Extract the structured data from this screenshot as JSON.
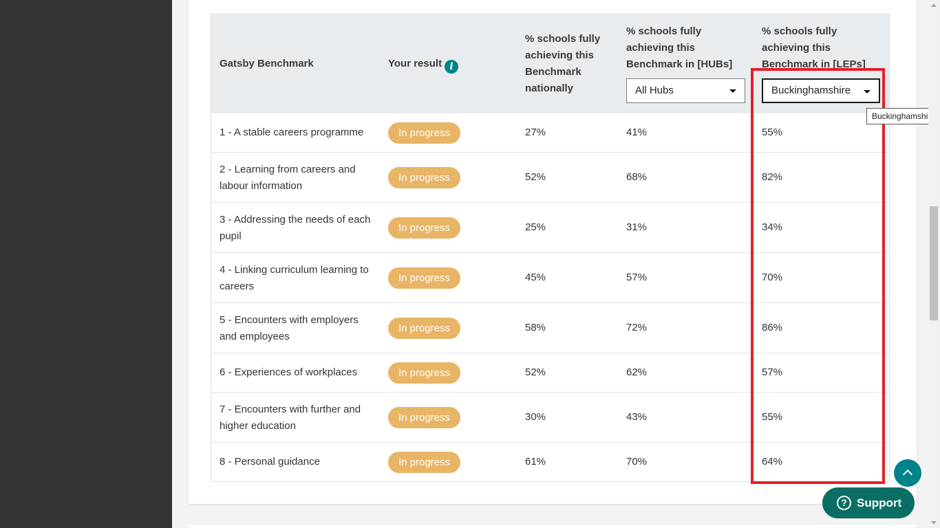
{
  "header": {
    "col_benchmark": "Gatsby Benchmark",
    "col_result": "Your result",
    "col_national": "% schools fully achieving this Benchmark nationally",
    "col_hubs": "% schools fully achieving this Benchmark in [HUBs]",
    "col_leps": "% schools fully achieving this Benchmark in [LEPs]",
    "hubs_select_value": "All Hubs",
    "leps_select_value": "Buckinghamshire"
  },
  "tooltip": "Buckinghamshire",
  "rows": [
    {
      "name": "1 - A stable careers programme",
      "result": "In progress",
      "national": "27%",
      "hubs": "41%",
      "leps": "55%"
    },
    {
      "name": "2 - Learning from careers and labour information",
      "result": "In progress",
      "national": "52%",
      "hubs": "68%",
      "leps": "82%"
    },
    {
      "name": "3 - Addressing the needs of each pupil",
      "result": "In progress",
      "national": "25%",
      "hubs": "31%",
      "leps": "34%"
    },
    {
      "name": "4 - Linking curriculum learning to careers",
      "result": "In progress",
      "national": "45%",
      "hubs": "57%",
      "leps": "70%"
    },
    {
      "name": "5 - Encounters with employers and employees",
      "result": "In progress",
      "national": "58%",
      "hubs": "72%",
      "leps": "86%"
    },
    {
      "name": "6 - Experiences of workplaces",
      "result": "In progress",
      "national": "52%",
      "hubs": "62%",
      "leps": "57%"
    },
    {
      "name": "7 - Encounters with further and higher education",
      "result": "In progress",
      "national": "30%",
      "hubs": "43%",
      "leps": "55%"
    },
    {
      "name": "8 - Personal guidance",
      "result": "In progress",
      "national": "61%",
      "hubs": "70%",
      "leps": "64%"
    }
  ],
  "support_label": "Support",
  "support_icon_glyph": "?",
  "info_icon_glyph": "i",
  "colors": {
    "badge": "#e8b566",
    "teal": "#00838a",
    "support": "#0b6e64",
    "highlight": "#e3202a"
  },
  "icons": [
    "info-icon",
    "chevron-down-icon",
    "chevron-up-icon",
    "question-icon"
  ]
}
